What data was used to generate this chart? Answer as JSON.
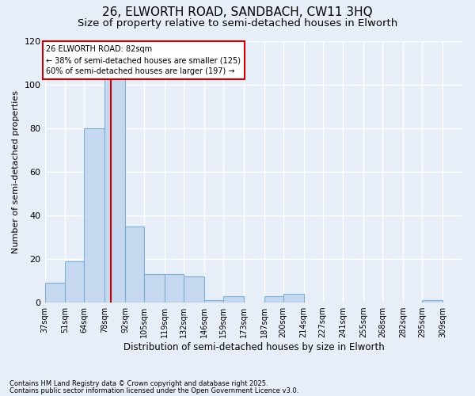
{
  "title1": "26, ELWORTH ROAD, SANDBACH, CW11 3HQ",
  "title2": "Size of property relative to semi-detached houses in Elworth",
  "xlabel": "Distribution of semi-detached houses by size in Elworth",
  "ylabel": "Number of semi-detached properties",
  "bins": [
    "37sqm",
    "51sqm",
    "64sqm",
    "78sqm",
    "92sqm",
    "105sqm",
    "119sqm",
    "132sqm",
    "146sqm",
    "159sqm",
    "173sqm",
    "187sqm",
    "200sqm",
    "214sqm",
    "227sqm",
    "241sqm",
    "255sqm",
    "268sqm",
    "282sqm",
    "295sqm",
    "309sqm"
  ],
  "bin_edges": [
    37,
    51,
    64,
    78,
    92,
    105,
    119,
    132,
    146,
    159,
    173,
    187,
    200,
    214,
    227,
    241,
    255,
    268,
    282,
    295,
    309
  ],
  "values": [
    9,
    19,
    80,
    107,
    35,
    13,
    13,
    12,
    1,
    3,
    0,
    3,
    4,
    0,
    0,
    0,
    0,
    0,
    0,
    1
  ],
  "bar_color": "#c5d8f0",
  "bar_edge_color": "#7bafd4",
  "property_size": 82,
  "property_label": "26 ELWORTH ROAD: 82sqm",
  "smaller_pct": 38,
  "smaller_n": 125,
  "larger_pct": 60,
  "larger_n": 197,
  "vline_color": "#cc0000",
  "annotation_box_color": "#cc0000",
  "ylim": [
    0,
    120
  ],
  "yticks": [
    0,
    20,
    40,
    60,
    80,
    100,
    120
  ],
  "footer1": "Contains HM Land Registry data © Crown copyright and database right 2025.",
  "footer2": "Contains public sector information licensed under the Open Government Licence v3.0.",
  "bg_color": "#e8eef8",
  "plot_bg": "#e8eef8",
  "grid_color": "#ffffff",
  "title1_fontsize": 11,
  "title2_fontsize": 9.5
}
